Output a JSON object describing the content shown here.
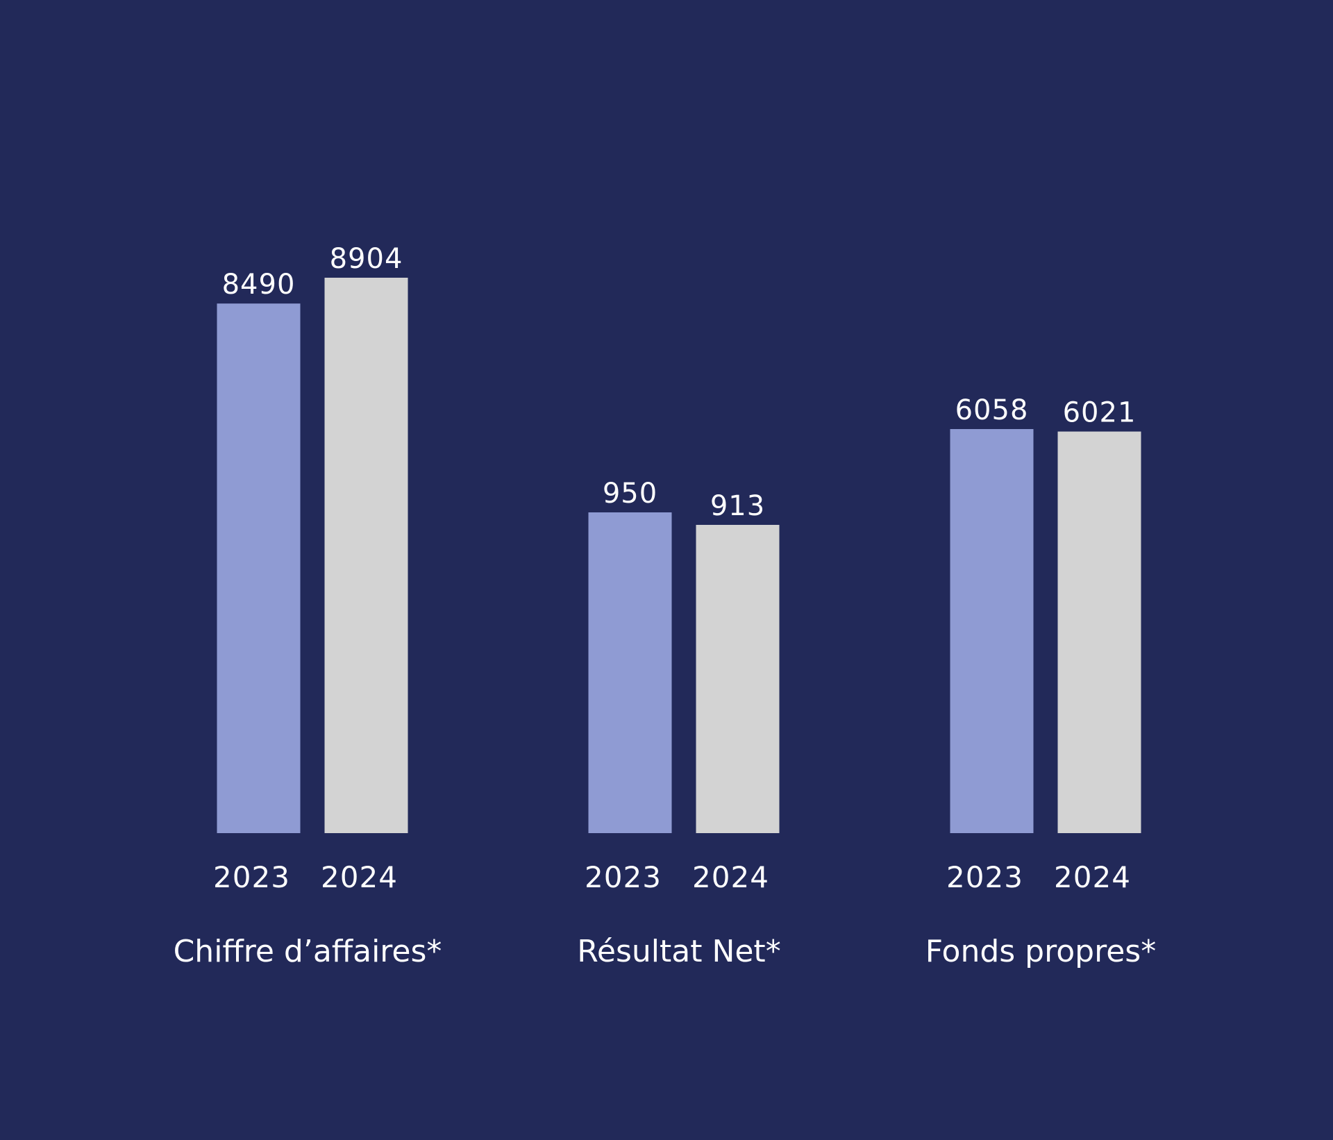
{
  "chart_data": {
    "type": "bar",
    "title": "",
    "xlabel": "",
    "ylabel": "",
    "grid": false,
    "legend": "none",
    "groups": [
      {
        "label": "Chiffre d’affaires*",
        "bars": [
          {
            "year": "2023",
            "value": 8490,
            "value_text": "8490"
          },
          {
            "year": "2024",
            "value": 8904,
            "value_text": "8904"
          }
        ]
      },
      {
        "label": "Résultat Net*",
        "bars": [
          {
            "year": "2023",
            "value": 950,
            "value_text": "950"
          },
          {
            "year": "2024",
            "value": 913,
            "value_text": "913"
          }
        ]
      },
      {
        "label": "Fonds propres*",
        "bars": [
          {
            "year": "2023",
            "value": 6058,
            "value_text": "6058"
          },
          {
            "year": "2024",
            "value": 6021,
            "value_text": "6021"
          }
        ]
      }
    ]
  },
  "colors": {
    "background": "#222959",
    "bar_2023": "#8f9bd3",
    "bar_2024": "#d3d3d3",
    "text": "#ffffff"
  }
}
